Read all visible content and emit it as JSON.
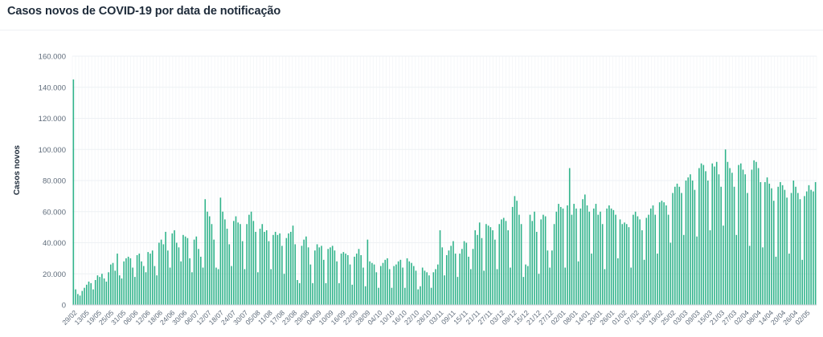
{
  "header": {
    "title": "Casos novos de COVID-19 por data de notificação"
  },
  "colors": {
    "bar": "#2fb38a",
    "grid": "#eef1f4",
    "axis": "#c9cfd6",
    "text": "#5e6b7a"
  },
  "chart_data": {
    "type": "bar",
    "title": "Casos novos de COVID-19 por data de notificação",
    "ylabel": "Casos novos",
    "xlabel": "",
    "ylim": [
      0,
      160000
    ],
    "grid": true,
    "yticks": [
      0,
      20000,
      40000,
      60000,
      80000,
      100000,
      120000,
      140000,
      160000
    ],
    "ytick_labels": [
      "0",
      "20.000",
      "40.000",
      "60.000",
      "80.000",
      "100.000",
      "120.000",
      "140.000",
      "160.000"
    ],
    "xtick_labels": [
      "29/02",
      "13/05",
      "19/05",
      "25/05",
      "31/05",
      "06/06",
      "12/06",
      "18/06",
      "24/06",
      "30/06",
      "06/07",
      "12/07",
      "18/07",
      "24/07",
      "30/07",
      "05/08",
      "11/08",
      "17/08",
      "23/08",
      "29/08",
      "04/09",
      "10/09",
      "16/09",
      "22/09",
      "28/09",
      "04/10",
      "10/10",
      "16/10",
      "22/10",
      "28/10",
      "03/11",
      "09/11",
      "15/11",
      "21/11",
      "27/11",
      "03/12",
      "09/12",
      "15/12",
      "21/12",
      "27/12",
      "02/01",
      "08/01",
      "14/01",
      "20/01",
      "26/01",
      "01/02",
      "07/02",
      "13/02",
      "19/02",
      "25/02",
      "03/03",
      "09/03",
      "15/03",
      "21/03",
      "27/03",
      "02/04",
      "08/04",
      "14/04",
      "20/04",
      "26/04",
      "02/05"
    ],
    "anchors": [
      {
        "index": 0,
        "label": "29/02",
        "value": 145000
      },
      {
        "index": 1,
        "label": "13/05",
        "value": 10000
      },
      {
        "index": 13,
        "label": "24/07",
        "value": 68000
      },
      {
        "index": 14,
        "label": "30/07",
        "value": 69000
      },
      {
        "index": 41,
        "label": "08/01",
        "value": 88000
      },
      {
        "index": 54,
        "label": "27/03",
        "value": 100000
      },
      {
        "index": 60,
        "label": "02/05",
        "value": 79000
      }
    ],
    "values": [
      145000,
      10000,
      7000,
      6000,
      9000,
      11000,
      13000,
      15000,
      14000,
      10000,
      16000,
      19000,
      18000,
      20000,
      17000,
      15000,
      21000,
      26000,
      27000,
      22000,
      33000,
      19000,
      17000,
      28000,
      30000,
      31000,
      30000,
      24000,
      18000,
      32000,
      33000,
      28000,
      25000,
      21000,
      34000,
      33000,
      35000,
      25000,
      19000,
      40000,
      42000,
      39000,
      47000,
      35000,
      24000,
      46000,
      48000,
      40000,
      37000,
      28000,
      45000,
      44000,
      43000,
      30000,
      21000,
      42000,
      44000,
      36000,
      31000,
      24000,
      68000,
      60000,
      57000,
      52000,
      42000,
      24000,
      23000,
      69000,
      60000,
      55000,
      49000,
      39000,
      25000,
      54000,
      57000,
      53000,
      52000,
      41000,
      23000,
      52000,
      58000,
      60000,
      54000,
      47000,
      21000,
      49000,
      52000,
      47000,
      48000,
      41000,
      23000,
      45000,
      47000,
      45000,
      46000,
      38000,
      20000,
      43000,
      46000,
      47000,
      51000,
      39000,
      16000,
      14000,
      38000,
      42000,
      44000,
      37000,
      26000,
      14000,
      35000,
      39000,
      37000,
      38000,
      29000,
      14000,
      36000,
      37000,
      38000,
      35000,
      28000,
      14000,
      33000,
      34000,
      33000,
      32000,
      26000,
      13000,
      31000,
      33000,
      36000,
      32000,
      24000,
      12000,
      42000,
      28000,
      27000,
      26000,
      21000,
      11000,
      25000,
      27000,
      29000,
      30000,
      23000,
      11000,
      25000,
      26000,
      28000,
      29000,
      24000,
      11000,
      30000,
      28000,
      27000,
      25000,
      22000,
      10000,
      12000,
      24000,
      22000,
      21000,
      19000,
      11000,
      21000,
      23000,
      26000,
      48000,
      37000,
      19000,
      32000,
      35000,
      38000,
      41000,
      33000,
      18000,
      33000,
      36000,
      41000,
      40000,
      31000,
      23000,
      36000,
      48000,
      45000,
      53000,
      43000,
      22000,
      52000,
      51000,
      50000,
      48000,
      42000,
      23000,
      52000,
      55000,
      56000,
      54000,
      48000,
      24000,
      63000,
      70000,
      67000,
      58000,
      52000,
      18000,
      26000,
      25000,
      58000,
      54000,
      60000,
      47000,
      20000,
      55000,
      58000,
      57000,
      35000,
      24000,
      35000,
      52000,
      60000,
      65000,
      63000,
      62000,
      24000,
      64000,
      88000,
      58000,
      65000,
      62000,
      28000,
      62000,
      68000,
      71000,
      64000,
      60000,
      33000,
      62000,
      65000,
      58000,
      60000,
      52000,
      23000,
      62000,
      64000,
      62000,
      61000,
      58000,
      30000,
      55000,
      52000,
      53000,
      52000,
      50000,
      24000,
      58000,
      60000,
      57000,
      55000,
      48000,
      29000,
      56000,
      58000,
      62000,
      64000,
      58000,
      33000,
      66000,
      67000,
      66000,
      64000,
      58000,
      40000,
      72000,
      76000,
      78000,
      76000,
      72000,
      45000,
      80000,
      82000,
      84000,
      80000,
      74000,
      44000,
      88000,
      91000,
      90000,
      86000,
      80000,
      48000,
      91000,
      89000,
      92000,
      84000,
      76000,
      51000,
      100000,
      92000,
      88000,
      85000,
      76000,
      45000,
      90000,
      91000,
      87000,
      84000,
      72000,
      38000,
      87000,
      93000,
      92000,
      88000,
      79000,
      37000,
      79000,
      82000,
      78000,
      75000,
      67000,
      31000,
      76000,
      79000,
      77000,
      74000,
      69000,
      33000,
      72000,
      80000,
      76000,
      72000,
      68000,
      29000,
      70000,
      73000,
      77000,
      74000,
      73000,
      79000
    ]
  }
}
